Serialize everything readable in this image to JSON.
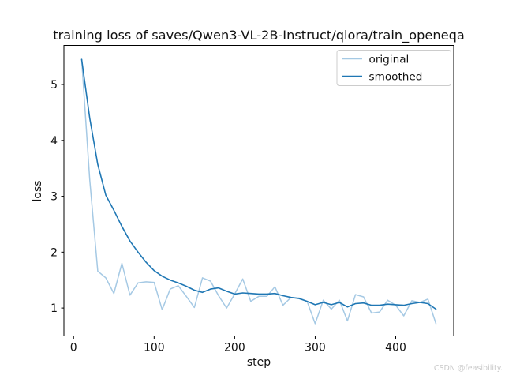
{
  "chart_data": {
    "type": "line",
    "title": "training loss of saves/Qwen3-VL-2B-Instruct/qlora/train_openeqa",
    "xlabel": "step",
    "ylabel": "loss",
    "x_ticks": [
      0,
      100,
      200,
      300,
      400
    ],
    "y_ticks": [
      1,
      2,
      3,
      4,
      5
    ],
    "xlim": [
      -12,
      472
    ],
    "ylim": [
      0.5,
      5.7
    ],
    "grid": false,
    "legend_position": "upper right",
    "x": [
      10,
      20,
      30,
      40,
      50,
      60,
      70,
      80,
      90,
      100,
      110,
      120,
      130,
      140,
      150,
      160,
      170,
      180,
      190,
      200,
      210,
      220,
      230,
      240,
      250,
      260,
      270,
      280,
      290,
      300,
      310,
      320,
      330,
      340,
      350,
      360,
      370,
      380,
      390,
      400,
      410,
      420,
      430,
      440,
      450
    ],
    "series": [
      {
        "name": "original",
        "color": "#a5c9e4",
        "line_width": 1.5,
        "values": [
          5.45,
          3.3,
          1.66,
          1.54,
          1.26,
          1.8,
          1.23,
          1.45,
          1.47,
          1.46,
          0.97,
          1.34,
          1.4,
          1.21,
          1.01,
          1.54,
          1.48,
          1.22,
          1.0,
          1.25,
          1.52,
          1.12,
          1.21,
          1.21,
          1.38,
          1.05,
          1.19,
          1.18,
          1.12,
          0.72,
          1.14,
          0.98,
          1.14,
          0.77,
          1.24,
          1.2,
          0.91,
          0.93,
          1.14,
          1.05,
          0.86,
          1.13,
          1.1,
          1.16,
          0.72
        ]
      },
      {
        "name": "smoothed",
        "color": "#1f77b4",
        "line_width": 1.6,
        "values": [
          5.45,
          4.4,
          3.57,
          3.02,
          2.75,
          2.46,
          2.2,
          2.0,
          1.82,
          1.67,
          1.57,
          1.5,
          1.45,
          1.39,
          1.32,
          1.28,
          1.34,
          1.36,
          1.3,
          1.25,
          1.27,
          1.26,
          1.25,
          1.25,
          1.26,
          1.22,
          1.19,
          1.17,
          1.12,
          1.06,
          1.1,
          1.06,
          1.1,
          1.02,
          1.08,
          1.09,
          1.05,
          1.05,
          1.07,
          1.06,
          1.05,
          1.08,
          1.1,
          1.08,
          0.98
        ]
      }
    ]
  },
  "watermark": {
    "text": "CSDN @feasibility."
  }
}
